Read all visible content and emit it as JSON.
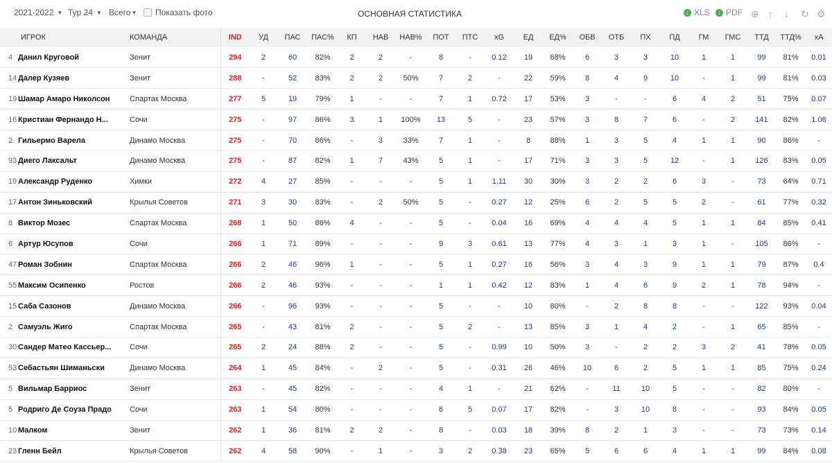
{
  "toolbar": {
    "season": "2021-2022",
    "tour": "Тур 24",
    "scope": "Всего",
    "show_photo": "Показать фото",
    "title": "ОСНОВНАЯ СТАТИСТИКА",
    "xls": "XLS",
    "pdf": "PDF"
  },
  "columns": [
    "ИГРОК",
    "КОМАНДА",
    "IND",
    "УД",
    "ПАС",
    "ПАС%",
    "КП",
    "НАВ",
    "НАВ%",
    "ПОТ",
    "ПТС",
    "xG",
    "ЕД",
    "ЕД%",
    "ОБВ",
    "ОТБ",
    "ПХ",
    "ПД",
    "ГМ",
    "ГМС",
    "ТТД",
    "ТТД%",
    "xA"
  ],
  "rows": [
    [
      "4",
      "Данил Круговой",
      "Зенит",
      "294",
      "2",
      "60",
      "82%",
      "2",
      "2",
      "-",
      "8",
      "-",
      "0.12",
      "19",
      "68%",
      "6",
      "3",
      "3",
      "10",
      "1",
      "1",
      "99",
      "81%",
      "0.01"
    ],
    [
      "14",
      "Далер Кузяев",
      "Зенит",
      "288",
      "-",
      "52",
      "83%",
      "2",
      "2",
      "50%",
      "7",
      "2",
      "-",
      "22",
      "59%",
      "8",
      "4",
      "9",
      "10",
      "-",
      "1",
      "99",
      "81%",
      "0.03"
    ],
    [
      "19",
      "Шамар Амаро Николсон",
      "Спартак Москва",
      "277",
      "5",
      "19",
      "79%",
      "1",
      "-",
      "-",
      "7",
      "1",
      "0.72",
      "17",
      "53%",
      "3",
      "-",
      "-",
      "6",
      "4",
      "2",
      "51",
      "75%",
      "0.07"
    ],
    [
      "16",
      "Кристиан Фернандо Н...",
      "Сочи",
      "275",
      "-",
      "97",
      "86%",
      "3",
      "1",
      "100%",
      "13",
      "5",
      "-",
      "23",
      "57%",
      "3",
      "8",
      "7",
      "6",
      "-",
      "2",
      "141",
      "82%",
      "1.06"
    ],
    [
      "2",
      "Гильермо Варела",
      "Динамо Москва",
      "275",
      "-",
      "70",
      "86%",
      "-",
      "3",
      "33%",
      "7",
      "1",
      "-",
      "8",
      "88%",
      "1",
      "3",
      "5",
      "4",
      "1",
      "1",
      "90",
      "86%",
      "-"
    ],
    [
      "93",
      "Диего Лаксальт",
      "Динамо Москва",
      "275",
      "-",
      "87",
      "82%",
      "1",
      "7",
      "43%",
      "5",
      "1",
      "-",
      "17",
      "71%",
      "3",
      "3",
      "5",
      "12",
      "-",
      "1",
      "126",
      "83%",
      "0.05"
    ],
    [
      "19",
      "Александр Руденко",
      "Химки",
      "272",
      "4",
      "27",
      "85%",
      "-",
      "-",
      "-",
      "5",
      "1",
      "1.11",
      "30",
      "30%",
      "3",
      "2",
      "2",
      "6",
      "3",
      "-",
      "73",
      "64%",
      "0.71"
    ],
    [
      "17",
      "Антон Зиньковский",
      "Крылья Советов",
      "271",
      "3",
      "30",
      "83%",
      "-",
      "2",
      "50%",
      "5",
      "-",
      "0.27",
      "12",
      "25%",
      "6",
      "2",
      "5",
      "5",
      "2",
      "-",
      "61",
      "77%",
      "0.32"
    ],
    [
      "8",
      "Виктор Мозес",
      "Спартак Москва",
      "268",
      "1",
      "50",
      "86%",
      "4",
      "-",
      "-",
      "5",
      "-",
      "0.04",
      "16",
      "69%",
      "4",
      "4",
      "4",
      "5",
      "1",
      "1",
      "84",
      "85%",
      "0.41"
    ],
    [
      "6",
      "Артур Юсупов",
      "Сочи",
      "266",
      "1",
      "71",
      "89%",
      "-",
      "-",
      "-",
      "9",
      "3",
      "0.61",
      "13",
      "77%",
      "4",
      "3",
      "1",
      "3",
      "1",
      "-",
      "105",
      "86%",
      "-"
    ],
    [
      "47",
      "Роман Зобнин",
      "Спартак Москва",
      "266",
      "2",
      "46",
      "96%",
      "1",
      "-",
      "-",
      "5",
      "1",
      "0.27",
      "16",
      "56%",
      "3",
      "4",
      "3",
      "9",
      "1",
      "1",
      "79",
      "87%",
      "0.4"
    ],
    [
      "55",
      "Максим Осипенко",
      "Ростов",
      "266",
      "2",
      "46",
      "93%",
      "-",
      "-",
      "-",
      "1",
      "1",
      "0.42",
      "12",
      "83%",
      "1",
      "4",
      "6",
      "9",
      "2",
      "1",
      "78",
      "94%",
      "-"
    ],
    [
      "15",
      "Саба Сазонов",
      "Динамо Москва",
      "266",
      "-",
      "96",
      "93%",
      "-",
      "-",
      "-",
      "5",
      "-",
      "-",
      "10",
      "80%",
      "-",
      "2",
      "8",
      "8",
      "-",
      "-",
      "122",
      "93%",
      "0.04"
    ],
    [
      "2",
      "Самуэль Жиго",
      "Спартак Москва",
      "265",
      "-",
      "43",
      "81%",
      "2",
      "-",
      "-",
      "5",
      "2",
      "-",
      "13",
      "85%",
      "3",
      "1",
      "4",
      "2",
      "-",
      "1",
      "65",
      "85%",
      "-"
    ],
    [
      "30",
      "Сандер Матео Кассьер...",
      "Сочи",
      "265",
      "2",
      "24",
      "88%",
      "2",
      "-",
      "-",
      "5",
      "-",
      "0.99",
      "10",
      "50%",
      "3",
      "-",
      "2",
      "2",
      "3",
      "2",
      "41",
      "78%",
      "0.05"
    ],
    [
      "53",
      "Себастьян Шиманьски",
      "Динамо Москва",
      "264",
      "1",
      "45",
      "84%",
      "-",
      "2",
      "-",
      "5",
      "-",
      "0.31",
      "26",
      "46%",
      "10",
      "6",
      "2",
      "5",
      "1",
      "1",
      "85",
      "75%",
      "0.24"
    ],
    [
      "5",
      "Вильмар Барриос",
      "Зенит",
      "263",
      "-",
      "45",
      "82%",
      "-",
      "-",
      "-",
      "4",
      "1",
      "-",
      "21",
      "62%",
      "-",
      "11",
      "10",
      "5",
      "-",
      "-",
      "82",
      "80%",
      "-"
    ],
    [
      "5",
      "Родриго Де Соуза Прадо",
      "Сочи",
      "263",
      "1",
      "54",
      "80%",
      "-",
      "-",
      "-",
      "6",
      "5",
      "0.07",
      "17",
      "82%",
      "-",
      "3",
      "10",
      "8",
      "-",
      "-",
      "93",
      "84%",
      "0.05"
    ],
    [
      "10",
      "Малком",
      "Зенит",
      "262",
      "1",
      "36",
      "81%",
      "2",
      "2",
      "-",
      "8",
      "-",
      "0.03",
      "18",
      "39%",
      "8",
      "2",
      "1",
      "3",
      "-",
      "-",
      "73",
      "73%",
      "0.14"
    ],
    [
      "23",
      "Гленн Бейл",
      "Крылья Советов",
      "262",
      "4",
      "58",
      "90%",
      "-",
      "1",
      "-",
      "3",
      "2",
      "0.38",
      "23",
      "65%",
      "5",
      "6",
      "6",
      "4",
      "1",
      "1",
      "99",
      "84%",
      "0.08"
    ]
  ]
}
